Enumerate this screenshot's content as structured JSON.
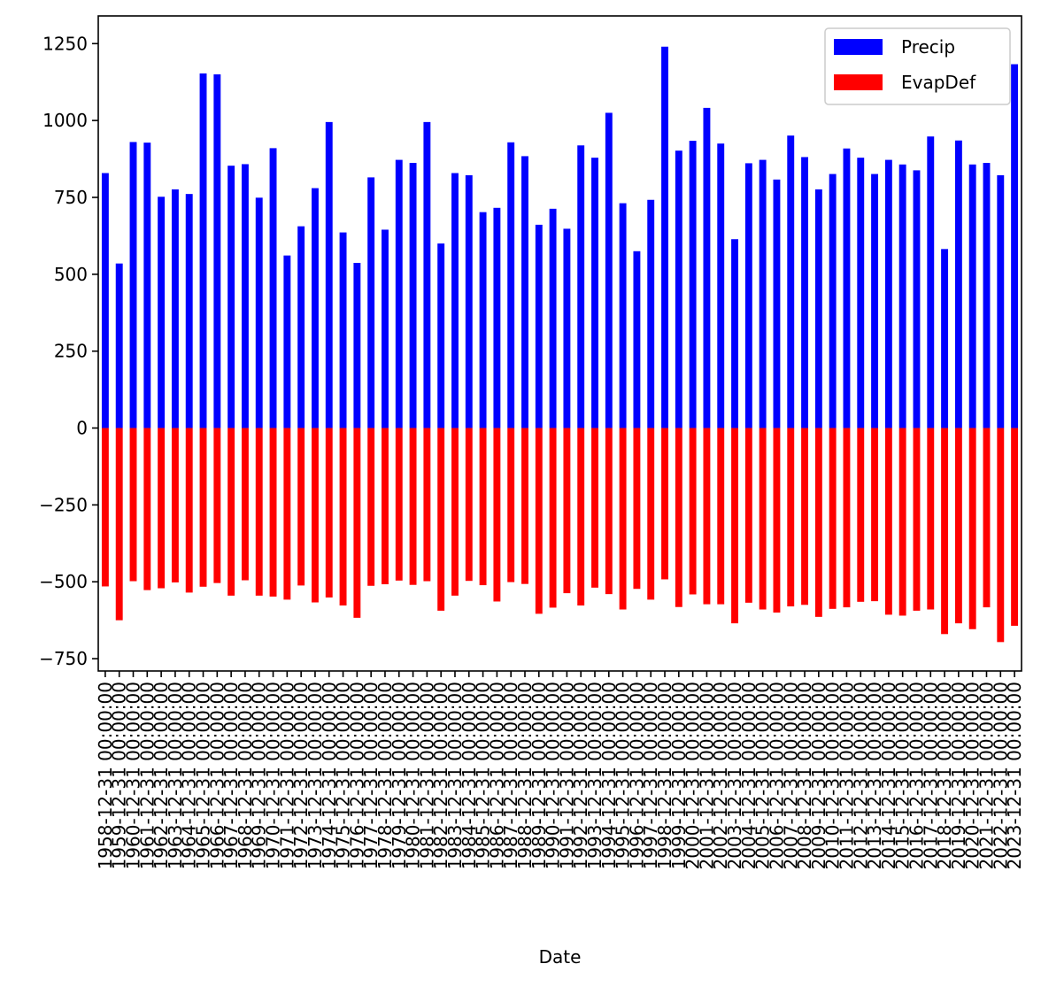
{
  "chart_data": {
    "type": "bar",
    "title": "",
    "xlabel": "Date",
    "ylabel": "",
    "ylim": [
      -790,
      1340
    ],
    "yticks": [
      -750,
      -500,
      -250,
      0,
      250,
      500,
      750,
      1000,
      1250
    ],
    "grid": false,
    "legend_position": "top-right",
    "categories": [
      "1958-12-31 00:00:00",
      "1959-12-31 00:00:00",
      "1960-12-31 00:00:00",
      "1961-12-31 00:00:00",
      "1962-12-31 00:00:00",
      "1963-12-31 00:00:00",
      "1964-12-31 00:00:00",
      "1965-12-31 00:00:00",
      "1966-12-31 00:00:00",
      "1967-12-31 00:00:00",
      "1968-12-31 00:00:00",
      "1969-12-31 00:00:00",
      "1970-12-31 00:00:00",
      "1971-12-31 00:00:00",
      "1972-12-31 00:00:00",
      "1973-12-31 00:00:00",
      "1974-12-31 00:00:00",
      "1975-12-31 00:00:00",
      "1976-12-31 00:00:00",
      "1977-12-31 00:00:00",
      "1978-12-31 00:00:00",
      "1979-12-31 00:00:00",
      "1980-12-31 00:00:00",
      "1981-12-31 00:00:00",
      "1982-12-31 00:00:00",
      "1983-12-31 00:00:00",
      "1984-12-31 00:00:00",
      "1985-12-31 00:00:00",
      "1986-12-31 00:00:00",
      "1987-12-31 00:00:00",
      "1988-12-31 00:00:00",
      "1989-12-31 00:00:00",
      "1990-12-31 00:00:00",
      "1991-12-31 00:00:00",
      "1992-12-31 00:00:00",
      "1993-12-31 00:00:00",
      "1994-12-31 00:00:00",
      "1995-12-31 00:00:00",
      "1996-12-31 00:00:00",
      "1997-12-31 00:00:00",
      "1998-12-31 00:00:00",
      "1999-12-31 00:00:00",
      "2000-12-31 00:00:00",
      "2001-12-31 00:00:00",
      "2002-12-31 00:00:00",
      "2003-12-31 00:00:00",
      "2004-12-31 00:00:00",
      "2005-12-31 00:00:00",
      "2006-12-31 00:00:00",
      "2007-12-31 00:00:00",
      "2008-12-31 00:00:00",
      "2009-12-31 00:00:00",
      "2010-12-31 00:00:00",
      "2011-12-31 00:00:00",
      "2012-12-31 00:00:00",
      "2013-12-31 00:00:00",
      "2014-12-31 00:00:00",
      "2015-12-31 00:00:00",
      "2016-12-31 00:00:00",
      "2017-12-31 00:00:00",
      "2018-12-31 00:00:00",
      "2019-12-31 00:00:00",
      "2020-12-31 00:00:00",
      "2021-12-31 00:00:00",
      "2022-12-31 00:00:00",
      "2023-12-31 00:00:00"
    ],
    "series": [
      {
        "name": "Precip",
        "color": "#0000ff",
        "values": [
          829,
          535,
          930,
          928,
          752,
          776,
          761,
          1153,
          1150,
          853,
          858,
          749,
          910,
          561,
          656,
          780,
          995,
          636,
          537,
          815,
          645,
          872,
          862,
          995,
          600,
          829,
          822,
          702,
          716,
          929,
          884,
          661,
          713,
          648,
          919,
          879,
          1025,
          731,
          575,
          742,
          1240,
          902,
          934,
          1041,
          925,
          614,
          861,
          872,
          808,
          951,
          881,
          776,
          826,
          909,
          879,
          826,
          872,
          857,
          838,
          948,
          582,
          935,
          857,
          862,
          822,
          1183
        ]
      },
      {
        "name": "EvapDef",
        "color": "#ff0000",
        "values": [
          -515,
          -625,
          -498,
          -527,
          -521,
          -502,
          -535,
          -516,
          -504,
          -545,
          -495,
          -545,
          -548,
          -558,
          -512,
          -567,
          -551,
          -577,
          -617,
          -513,
          -508,
          -496,
          -510,
          -498,
          -594,
          -545,
          -497,
          -511,
          -564,
          -501,
          -507,
          -604,
          -584,
          -537,
          -577,
          -519,
          -540,
          -590,
          -523,
          -558,
          -492,
          -582,
          -541,
          -573,
          -573,
          -635,
          -568,
          -590,
          -600,
          -580,
          -575,
          -614,
          -588,
          -583,
          -565,
          -563,
          -607,
          -610,
          -594,
          -590,
          -670,
          -635,
          -654,
          -583,
          -696,
          -643
        ]
      }
    ]
  }
}
